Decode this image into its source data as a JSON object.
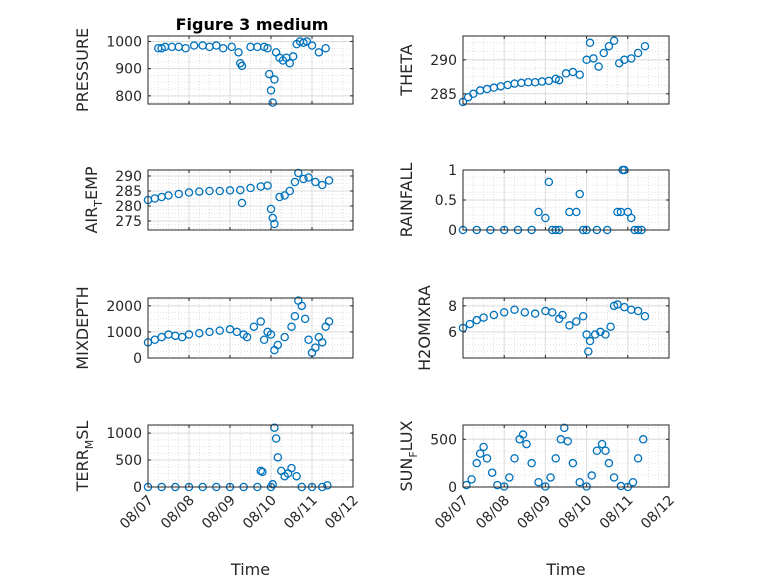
{
  "figure": {
    "title": "Figure 3 medium",
    "marker_color": "#0072BD"
  },
  "chart_data": [
    {
      "type": "scatter",
      "id": "pressure",
      "ylabel": {
        "main": "PRESSURE"
      },
      "xlim": [
        "08/07",
        "08/12"
      ],
      "ylim": [
        770,
        1020
      ],
      "yticks": [
        800,
        900,
        1000
      ],
      "xticks": [
        "08/07",
        "08/08",
        "08/09",
        "08/10",
        "08/11",
        "08/12"
      ],
      "x_tick_labels_visible": false,
      "grid": true,
      "x": [
        "08/07 06:00",
        "08/07 08:00",
        "08/07 10:00",
        "08/07 14:00",
        "08/07 18:00",
        "08/07 22:00",
        "08/08 03:00",
        "08/08 08:00",
        "08/08 12:00",
        "08/08 16:00",
        "08/08 20:00",
        "08/09 01:00",
        "08/09 05:00",
        "08/09 06:00",
        "08/09 07:00",
        "08/09 12:00",
        "08/09 16:00",
        "08/09 20:00",
        "08/09 22:00",
        "08/09 23:00",
        "08/10 00:00",
        "08/10 01:00",
        "08/10 02:00",
        "08/10 03:00",
        "08/10 05:00",
        "08/10 07:00",
        "08/10 09:00",
        "08/10 11:00",
        "08/10 13:00",
        "08/10 15:00",
        "08/10 17:00",
        "08/10 19:00",
        "08/10 21:00",
        "08/11 00:00",
        "08/11 04:00",
        "08/11 08:00"
      ],
      "y": [
        975,
        975,
        980,
        980,
        980,
        975,
        985,
        985,
        980,
        985,
        975,
        980,
        960,
        920,
        910,
        980,
        980,
        980,
        975,
        880,
        820,
        775,
        860,
        960,
        940,
        930,
        940,
        920,
        945,
        990,
        1000,
        995,
        1000,
        985,
        960,
        975
      ]
    },
    {
      "type": "scatter",
      "id": "theta",
      "ylabel": {
        "main": "THETA"
      },
      "xlim": [
        "08/07",
        "08/12"
      ],
      "ylim": [
        283.5,
        293.5
      ],
      "yticks": [
        285,
        290
      ],
      "xticks": [
        "08/07",
        "08/08",
        "08/09",
        "08/10",
        "08/11",
        "08/12"
      ],
      "x_tick_labels_visible": false,
      "grid": true,
      "x": [
        "08/07 00:00",
        "08/07 03:00",
        "08/07 06:00",
        "08/07 10:00",
        "08/07 14:00",
        "08/07 18:00",
        "08/07 22:00",
        "08/08 02:00",
        "08/08 06:00",
        "08/08 10:00",
        "08/08 14:00",
        "08/08 18:00",
        "08/08 22:00",
        "08/09 02:00",
        "08/09 06:00",
        "08/09 08:00",
        "08/09 12:00",
        "08/09 16:00",
        "08/09 20:00",
        "08/10 00:00",
        "08/10 02:00",
        "08/10 04:00",
        "08/10 07:00",
        "08/10 10:00",
        "08/10 13:00",
        "08/10 16:00",
        "08/10 19:00",
        "08/10 22:00",
        "08/11 02:00",
        "08/11 06:00",
        "08/11 10:00"
      ],
      "y": [
        283.8,
        284.5,
        285.0,
        285.5,
        285.7,
        285.9,
        286.1,
        286.3,
        286.5,
        286.6,
        286.7,
        286.7,
        286.8,
        286.9,
        287.2,
        287.0,
        288.0,
        288.2,
        287.8,
        290.0,
        292.5,
        290.2,
        289.0,
        291.0,
        292.0,
        292.8,
        289.5,
        290.0,
        290.2,
        291.0,
        292.0
      ]
    },
    {
      "type": "scatter",
      "id": "air_temp",
      "ylabel": {
        "main": "AIR",
        "sub": "T",
        "rest": "EMP"
      },
      "xlim": [
        "08/07",
        "08/12"
      ],
      "ylim": [
        272,
        292
      ],
      "yticks": [
        275,
        280,
        285,
        290
      ],
      "xticks": [
        "08/07",
        "08/08",
        "08/09",
        "08/10",
        "08/11",
        "08/12"
      ],
      "x_tick_labels_visible": false,
      "grid": true,
      "x": [
        "08/07 00:00",
        "08/07 04:00",
        "08/07 08:00",
        "08/07 12:00",
        "08/07 18:00",
        "08/08 00:00",
        "08/08 06:00",
        "08/08 12:00",
        "08/08 18:00",
        "08/09 00:00",
        "08/09 06:00",
        "08/09 07:00",
        "08/09 12:00",
        "08/09 18:00",
        "08/09 22:00",
        "08/10 00:00",
        "08/10 01:00",
        "08/10 02:00",
        "08/10 05:00",
        "08/10 08:00",
        "08/10 11:00",
        "08/10 14:00",
        "08/10 16:00",
        "08/10 19:00",
        "08/10 22:00",
        "08/11 02:00",
        "08/11 06:00",
        "08/11 10:00"
      ],
      "y": [
        282,
        282.5,
        283,
        283.5,
        284,
        284.5,
        284.8,
        285,
        285,
        285.2,
        285.3,
        281,
        286,
        286.5,
        286.8,
        279,
        276,
        274,
        283,
        283.5,
        285,
        288,
        291,
        289,
        289.5,
        288,
        287,
        288.5
      ]
    },
    {
      "type": "scatter",
      "id": "rainfall",
      "ylabel": {
        "main": "RAINFALL"
      },
      "xlim": [
        "08/07",
        "08/12"
      ],
      "ylim": [
        0,
        1
      ],
      "yticks": [
        0,
        0.5,
        1
      ],
      "xticks": [
        "08/07",
        "08/08",
        "08/09",
        "08/10",
        "08/11",
        "08/12"
      ],
      "x_tick_labels_visible": false,
      "grid": true,
      "x": [
        "08/07 00:00",
        "08/07 08:00",
        "08/07 16:00",
        "08/08 00:00",
        "08/08 08:00",
        "08/08 16:00",
        "08/08 20:00",
        "08/09 00:00",
        "08/09 02:00",
        "08/09 04:00",
        "08/09 06:00",
        "08/09 08:00",
        "08/09 14:00",
        "08/09 18:00",
        "08/09 20:00",
        "08/09 22:00",
        "08/10 00:00",
        "08/10 06:00",
        "08/10 12:00",
        "08/10 18:00",
        "08/10 20:00",
        "08/10 21:00",
        "08/10 22:00",
        "08/11 00:00",
        "08/11 02:00",
        "08/11 04:00",
        "08/11 06:00",
        "08/11 08:00"
      ],
      "y": [
        0,
        0,
        0,
        0,
        0,
        0,
        0.3,
        0.2,
        0.8,
        0,
        0,
        0,
        0.3,
        0.3,
        0.6,
        0,
        0,
        0,
        0,
        0.3,
        0.3,
        1,
        1,
        0.3,
        0.2,
        0,
        0,
        0
      ]
    },
    {
      "type": "scatter",
      "id": "mixdepth",
      "ylabel": {
        "main": "MIXDEPTH"
      },
      "xlim": [
        "08/07",
        "08/12"
      ],
      "ylim": [
        0,
        2300
      ],
      "yticks": [
        0,
        1000,
        2000
      ],
      "xticks": [
        "08/07",
        "08/08",
        "08/09",
        "08/10",
        "08/11",
        "08/12"
      ],
      "x_tick_labels_visible": false,
      "grid": true,
      "x": [
        "08/07 00:00",
        "08/07 04:00",
        "08/07 08:00",
        "08/07 12:00",
        "08/07 16:00",
        "08/07 20:00",
        "08/08 00:00",
        "08/08 06:00",
        "08/08 12:00",
        "08/08 18:00",
        "08/09 00:00",
        "08/09 04:00",
        "08/09 08:00",
        "08/09 10:00",
        "08/09 14:00",
        "08/09 18:00",
        "08/09 20:00",
        "08/09 22:00",
        "08/10 00:00",
        "08/10 02:00",
        "08/10 04:00",
        "08/10 08:00",
        "08/10 12:00",
        "08/10 14:00",
        "08/10 16:00",
        "08/10 18:00",
        "08/10 20:00",
        "08/10 22:00",
        "08/11 00:00",
        "08/11 02:00",
        "08/11 04:00",
        "08/11 06:00",
        "08/11 08:00",
        "08/11 10:00"
      ],
      "y": [
        600,
        700,
        800,
        900,
        850,
        800,
        900,
        950,
        1000,
        1050,
        1100,
        1000,
        900,
        800,
        1200,
        1400,
        700,
        1000,
        900,
        300,
        500,
        800,
        1200,
        1600,
        2200,
        2000,
        1500,
        700,
        200,
        400,
        800,
        600,
        1200,
        1400
      ]
    },
    {
      "type": "scatter",
      "id": "h2omixra",
      "ylabel": {
        "main": "H2OMIXRA"
      },
      "xlim": [
        "08/07",
        "08/12"
      ],
      "ylim": [
        4,
        8.6
      ],
      "yticks": [
        6,
        8
      ],
      "xticks": [
        "08/07",
        "08/08",
        "08/09",
        "08/10",
        "08/11",
        "08/12"
      ],
      "x_tick_labels_visible": false,
      "grid": true,
      "x": [
        "08/07 00:00",
        "08/07 04:00",
        "08/07 08:00",
        "08/07 12:00",
        "08/07 18:00",
        "08/08 00:00",
        "08/08 06:00",
        "08/08 12:00",
        "08/08 18:00",
        "08/09 00:00",
        "08/09 04:00",
        "08/09 08:00",
        "08/09 10:00",
        "08/09 14:00",
        "08/09 18:00",
        "08/09 22:00",
        "08/10 00:00",
        "08/10 01:00",
        "08/10 02:00",
        "08/10 05:00",
        "08/10 08:00",
        "08/10 11:00",
        "08/10 14:00",
        "08/10 16:00",
        "08/10 18:00",
        "08/10 22:00",
        "08/11 02:00",
        "08/11 06:00",
        "08/11 10:00"
      ],
      "y": [
        6.3,
        6.6,
        6.9,
        7.1,
        7.3,
        7.5,
        7.7,
        7.5,
        7.4,
        7.6,
        7.5,
        7.0,
        7.3,
        6.5,
        6.8,
        7.2,
        5.8,
        4.5,
        5.3,
        5.8,
        6.0,
        5.8,
        6.4,
        8.0,
        8.1,
        7.9,
        7.7,
        7.6,
        7.2
      ]
    },
    {
      "type": "scatter",
      "id": "terr_msl",
      "ylabel": {
        "main": "TERR",
        "sub": "M",
        "rest": "SL"
      },
      "xlim": [
        "08/07",
        "08/12"
      ],
      "ylim": [
        0,
        1150
      ],
      "yticks": [
        0,
        500,
        1000
      ],
      "xticks": [
        "08/07",
        "08/08",
        "08/09",
        "08/10",
        "08/11",
        "08/12"
      ],
      "x_tick_labels_visible": false,
      "grid": true,
      "x": [
        "08/07 00:00",
        "08/07 08:00",
        "08/07 16:00",
        "08/08 00:00",
        "08/08 08:00",
        "08/08 16:00",
        "08/09 00:00",
        "08/09 08:00",
        "08/09 16:00",
        "08/09 18:00",
        "08/09 19:00",
        "08/10 00:00",
        "08/10 01:00",
        "08/10 02:00",
        "08/10 03:00",
        "08/10 04:00",
        "08/10 06:00",
        "08/10 08:00",
        "08/10 10:00",
        "08/10 12:00",
        "08/10 15:00",
        "08/10 18:00",
        "08/11 00:00",
        "08/11 06:00",
        "08/11 09:00"
      ],
      "y": [
        0,
        0,
        0,
        0,
        0,
        0,
        0,
        0,
        0,
        300,
        280,
        0,
        50,
        1100,
        900,
        550,
        300,
        200,
        250,
        350,
        200,
        0,
        0,
        0,
        30
      ]
    },
    {
      "type": "scatter",
      "id": "sun_flux",
      "ylabel": {
        "main": "SUN",
        "sub": "F",
        "rest": "LUX"
      },
      "xlim": [
        "08/07",
        "08/12"
      ],
      "ylim": [
        0,
        650
      ],
      "yticks": [
        0,
        500
      ],
      "xticks": [
        "08/07",
        "08/08",
        "08/09",
        "08/10",
        "08/11",
        "08/12"
      ],
      "x_tick_labels_visible": true,
      "xlabel": "Time",
      "grid": true,
      "x": [
        "08/07 02:00",
        "08/07 05:00",
        "08/07 08:00",
        "08/07 10:00",
        "08/07 12:00",
        "08/07 14:00",
        "08/07 17:00",
        "08/07 20:00",
        "08/08 00:00",
        "08/08 03:00",
        "08/08 06:00",
        "08/08 09:00",
        "08/08 11:00",
        "08/08 13:00",
        "08/08 16:00",
        "08/08 20:00",
        "08/09 00:00",
        "08/09 03:00",
        "08/09 06:00",
        "08/09 09:00",
        "08/09 11:00",
        "08/09 13:00",
        "08/09 16:00",
        "08/09 20:00",
        "08/10 00:00",
        "08/10 03:00",
        "08/10 06:00",
        "08/10 09:00",
        "08/10 11:00",
        "08/10 13:00",
        "08/10 16:00",
        "08/10 20:00",
        "08/11 00:00",
        "08/11 03:00",
        "08/11 06:00",
        "08/11 09:00"
      ],
      "y": [
        20,
        80,
        250,
        350,
        420,
        300,
        150,
        20,
        5,
        100,
        300,
        500,
        550,
        450,
        250,
        50,
        5,
        100,
        300,
        500,
        620,
        480,
        250,
        50,
        5,
        120,
        380,
        450,
        380,
        250,
        100,
        10,
        0,
        50,
        300,
        500
      ]
    }
  ]
}
